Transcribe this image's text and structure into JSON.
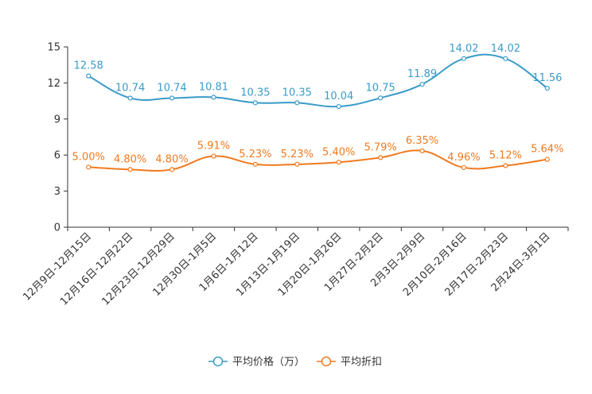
{
  "chart_data": {
    "type": "line",
    "title": "",
    "xlabel": "",
    "ylabel": "",
    "ylim": [
      0,
      15
    ],
    "yticks": [
      0,
      3,
      6,
      9,
      12,
      15
    ],
    "grid": false,
    "legend_position": "bottom-center",
    "categories": [
      "12月9日-12月15日",
      "12月16日-12月22日",
      "12月23日-12月29日",
      "12月30日-1月5日",
      "1月6日-1月12日",
      "1月13日-1月19日",
      "1月20日-1月26日",
      "1月27日-2月2日",
      "2月3日-2月9日",
      "2月10日-2月16日",
      "2月17日-2月23日",
      "2月24日-3月1日"
    ],
    "series": [
      {
        "name": "平均价格（万）",
        "color": "#3a9bc8",
        "values": [
          12.58,
          10.74,
          10.74,
          10.81,
          10.35,
          10.35,
          10.04,
          10.75,
          11.89,
          14.02,
          14.02,
          11.56
        ],
        "labels": [
          "12.58",
          "10.74",
          "10.74",
          "10.81",
          "10.35",
          "10.35",
          "10.04",
          "10.75",
          "11.89",
          "14.02",
          "14.02",
          "11.56"
        ]
      },
      {
        "name": "平均折扣",
        "color": "#f07a1f",
        "values": [
          5.0,
          4.8,
          4.8,
          5.91,
          5.23,
          5.23,
          5.4,
          5.79,
          6.35,
          4.96,
          5.12,
          5.64
        ],
        "labels": [
          "5.00%",
          "4.80%",
          "4.80%",
          "5.91%",
          "5.23%",
          "5.23%",
          "5.40%",
          "5.79%",
          "6.35%",
          "4.96%",
          "5.12%",
          "5.64%"
        ]
      }
    ]
  }
}
